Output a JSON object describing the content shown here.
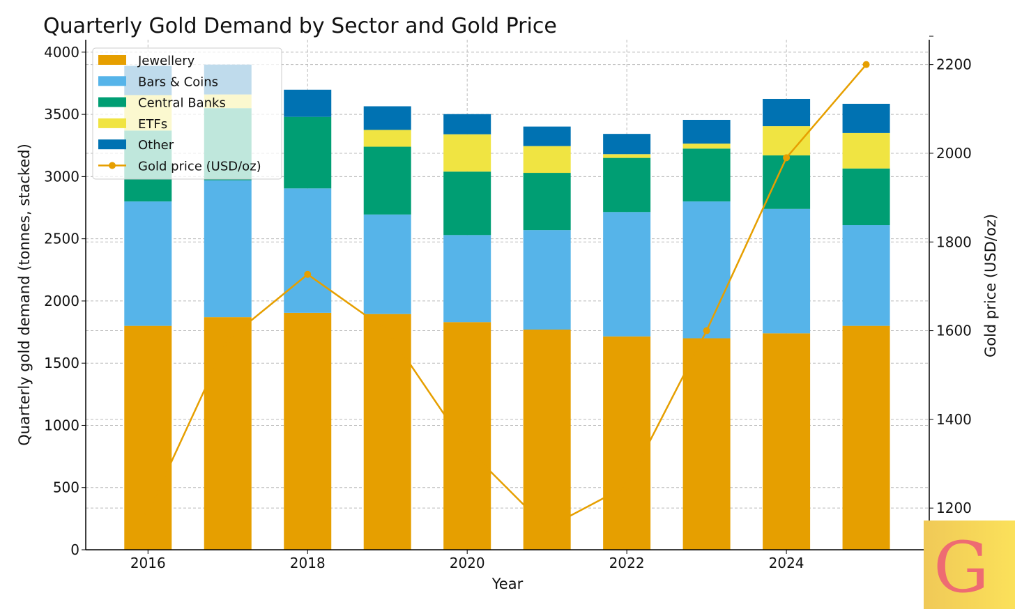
{
  "chart_data": {
    "type": "bar",
    "stacked": true,
    "title": "Quarterly Gold Demand by Sector and Gold Price",
    "xlabel": "Year",
    "ylabel": "Quarterly gold demand (tonnes, stacked)",
    "y2label": "Gold price (USD/oz)",
    "categories": [
      2016,
      2017,
      2018,
      2019,
      2020,
      2021,
      2022,
      2023,
      2024,
      2025
    ],
    "xticks": [
      "2016",
      "2018",
      "2020",
      "2022",
      "2024"
    ],
    "yticks": [
      "0",
      "500",
      "1000",
      "1500",
      "2000",
      "2500",
      "3000",
      "3500",
      "4000"
    ],
    "y2ticks": [
      "1200",
      "1400",
      "1600",
      "1800",
      "2000",
      "2200"
    ],
    "xlim": [
      2015.22,
      2025.79
    ],
    "ylim": [
      0,
      4100
    ],
    "y2lim": [
      1106,
      2256
    ],
    "grid": true,
    "legend_position": "top-left",
    "series": [
      {
        "name": "Jewellery",
        "color": "#E69F00",
        "values": [
          1800,
          1870,
          1905,
          1895,
          1830,
          1770,
          1715,
          1700,
          1740,
          1800
        ]
      },
      {
        "name": "Bars & Coins",
        "color": "#56B4E9",
        "values": [
          1000,
          1100,
          1000,
          800,
          700,
          800,
          1000,
          1100,
          1000,
          810
        ]
      },
      {
        "name": "Central Banks",
        "color": "#009E73",
        "values": [
          570,
          580,
          575,
          545,
          510,
          460,
          435,
          425,
          430,
          455
        ]
      },
      {
        "name": "ETFs",
        "color": "#F0E442",
        "values": [
          285,
          110,
          0,
          135,
          300,
          215,
          30,
          40,
          235,
          285
        ]
      },
      {
        "name": "Other",
        "color": "#0072B2",
        "values": [
          235,
          240,
          218,
          190,
          162,
          157,
          163,
          191,
          219,
          235
        ]
      }
    ],
    "line_series": {
      "name": "Gold price (USD/oz)",
      "color": "#E69F00",
      "axis": "right",
      "values": [
        1190,
        1580,
        1727,
        1600,
        1335,
        1155,
        1250,
        1600,
        1990,
        2200
      ]
    }
  },
  "logo": {
    "letter": "G"
  }
}
